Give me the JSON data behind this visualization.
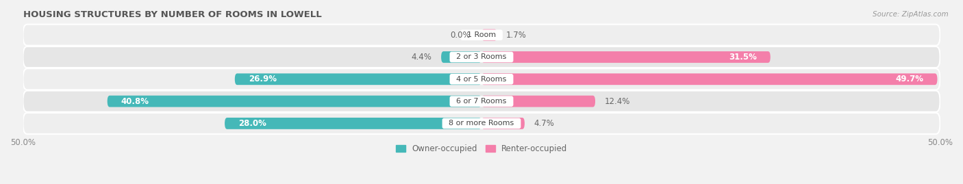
{
  "title": "HOUSING STRUCTURES BY NUMBER OF ROOMS IN LOWELL",
  "source": "Source: ZipAtlas.com",
  "categories": [
    "1 Room",
    "2 or 3 Rooms",
    "4 or 5 Rooms",
    "6 or 7 Rooms",
    "8 or more Rooms"
  ],
  "owner_values": [
    0.0,
    4.4,
    26.9,
    40.8,
    28.0
  ],
  "renter_values": [
    1.7,
    31.5,
    49.7,
    12.4,
    4.7
  ],
  "owner_color": "#45b8b8",
  "renter_color": "#f47faa",
  "owner_color_light": "#80d4d4",
  "renter_color_light": "#f8aac8",
  "axis_limit": 50.0,
  "background_color": "#f2f2f2",
  "row_colors": [
    "#eeeeee",
    "#e6e6e6"
  ],
  "bar_height": 0.52,
  "label_fontsize": 8.5,
  "title_fontsize": 9.5,
  "source_fontsize": 7.5,
  "cat_label_fontsize": 8.0
}
